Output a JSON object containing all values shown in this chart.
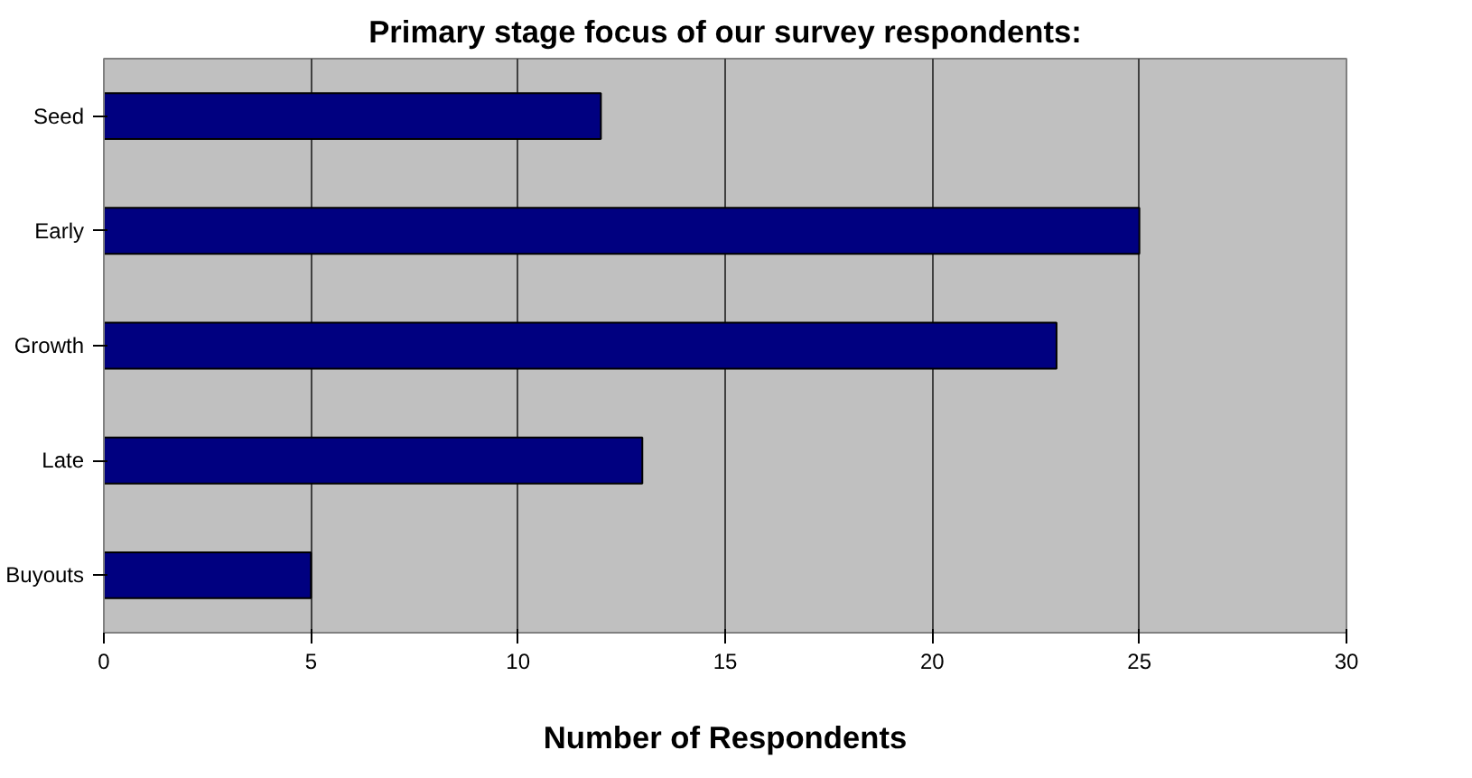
{
  "chart_data": {
    "type": "bar",
    "orientation": "horizontal",
    "title": "Primary stage focus of our survey respondents:",
    "xlabel": "Number of Respondents",
    "categories": [
      "Seed",
      "Early",
      "Growth",
      "Late",
      "Buyouts"
    ],
    "values": [
      12,
      25,
      23,
      13,
      5
    ],
    "color": "#000080",
    "xlim": [
      0,
      30
    ],
    "xticks": [
      0,
      5,
      10,
      15,
      20,
      25,
      30
    ],
    "grid": "x"
  }
}
